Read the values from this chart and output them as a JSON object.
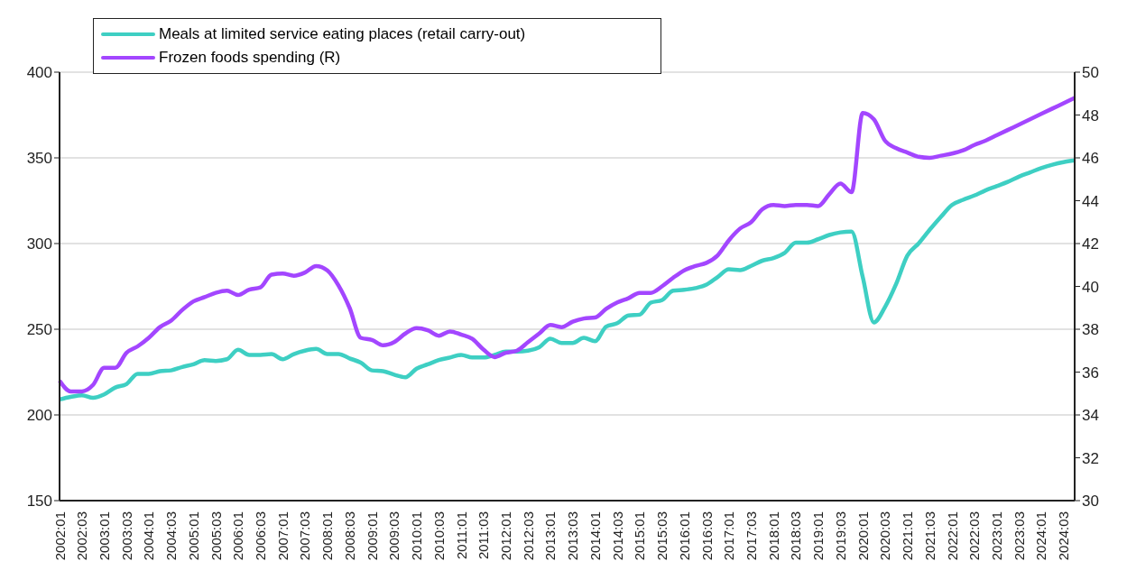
{
  "chart_data": {
    "type": "line",
    "categories": [
      "2002:01",
      null,
      "2002:03",
      null,
      "2003:01",
      null,
      "2003:03",
      null,
      "2004:01",
      null,
      "2004:03",
      null,
      "2005:01",
      null,
      "2005:03",
      null,
      "2006:01",
      null,
      "2006:03",
      null,
      "2007:01",
      null,
      "2007:03",
      null,
      "2008:01",
      null,
      "2008:03",
      null,
      "2009:01",
      null,
      "2009:03",
      null,
      "2010:01",
      null,
      "2010:03",
      null,
      "2011:01",
      null,
      "2011:03",
      null,
      "2012:01",
      null,
      "2012:03",
      null,
      "2013:01",
      null,
      "2013:03",
      null,
      "2014:01",
      null,
      "2014:03",
      null,
      "2015:01",
      null,
      "2015:03",
      null,
      "2016:01",
      null,
      "2016:03",
      null,
      "2017:01",
      null,
      "2017:03",
      null,
      "2018:01",
      null,
      "2018:03",
      null,
      "2019:01",
      null,
      "2019:03",
      null,
      "2020:01",
      null,
      "2020:03",
      null,
      "2021:01",
      null,
      "2021:03",
      null,
      "2022:01",
      null,
      "2022:03",
      null,
      "2023:01",
      null,
      "2023:03",
      null,
      "2024:01",
      null,
      "2024:03",
      null
    ],
    "series": [
      {
        "name": "Meals at limited service eating places (retail carry-out)",
        "color": "#3ecfc3",
        "values": [
          209,
          210.5,
          211.5,
          210,
          212,
          216,
          218,
          224,
          224,
          225.5,
          226,
          228,
          229.5,
          232,
          231.5,
          232.5,
          238,
          235,
          235,
          235.5,
          232.5,
          235.5,
          237.5,
          238.5,
          235.5,
          235.5,
          233,
          230.5,
          226,
          225.5,
          223.5,
          222,
          227,
          229.5,
          232,
          233.5,
          235,
          233.5,
          233.5,
          235,
          237,
          237,
          237.5,
          239.5,
          244.5,
          242,
          242,
          245,
          243,
          251.5,
          253.5,
          258,
          258.5,
          265.5,
          267,
          272.5,
          273,
          274,
          276,
          280.5,
          285,
          284.5,
          287,
          290,
          291.5,
          294.5,
          300.5,
          300.5,
          302.5,
          305,
          306.5,
          307,
          280.5,
          254,
          263,
          276.5,
          293,
          300,
          308,
          315.5,
          322.5,
          325.5,
          328,
          331,
          333.5,
          336,
          339,
          341.5,
          344,
          346,
          347.5,
          348.5
        ]
      },
      {
        "name": "Frozen foods spending (R)",
        "color": "#a346ff",
        "axis": "y2",
        "values": [
          35.6,
          35.1,
          35.1,
          35.4,
          36.2,
          36.2,
          36.9,
          37.2,
          37.6,
          38.1,
          38.4,
          38.9,
          39.3,
          39.5,
          39.7,
          39.8,
          39.6,
          39.85,
          39.95,
          40.55,
          40.6,
          40.5,
          40.65,
          40.95,
          40.75,
          40.05,
          39,
          37.6,
          37.5,
          37.25,
          37.4,
          37.8,
          38.05,
          37.95,
          37.7,
          37.9,
          37.75,
          37.55,
          37.05,
          36.7,
          36.9,
          37,
          37.4,
          37.8,
          38.2,
          38.1,
          38.35,
          38.5,
          38.55,
          38.95,
          39.25,
          39.45,
          39.7,
          39.7,
          40,
          40.4,
          40.75,
          40.95,
          41.1,
          41.45,
          42.15,
          42.7,
          43,
          43.6,
          43.8,
          43.75,
          43.8,
          43.8,
          43.75,
          44.3,
          44.8,
          44.4,
          48.1,
          47.8,
          46.8,
          46.45,
          46.25,
          46.05,
          46,
          46.1,
          46.2,
          46.35,
          46.6,
          46.8,
          47.05,
          47.3,
          47.55,
          47.8,
          48.05,
          48.3,
          48.55,
          48.8
        ]
      }
    ],
    "ylim": [
      150,
      400
    ],
    "yticks": [
      150,
      200,
      250,
      300,
      350,
      400
    ],
    "y2lim": [
      30,
      50
    ],
    "y2ticks": [
      30,
      32,
      34,
      36,
      38,
      40,
      42,
      44,
      46,
      48,
      50
    ],
    "grid": "y",
    "legend": "top left"
  }
}
